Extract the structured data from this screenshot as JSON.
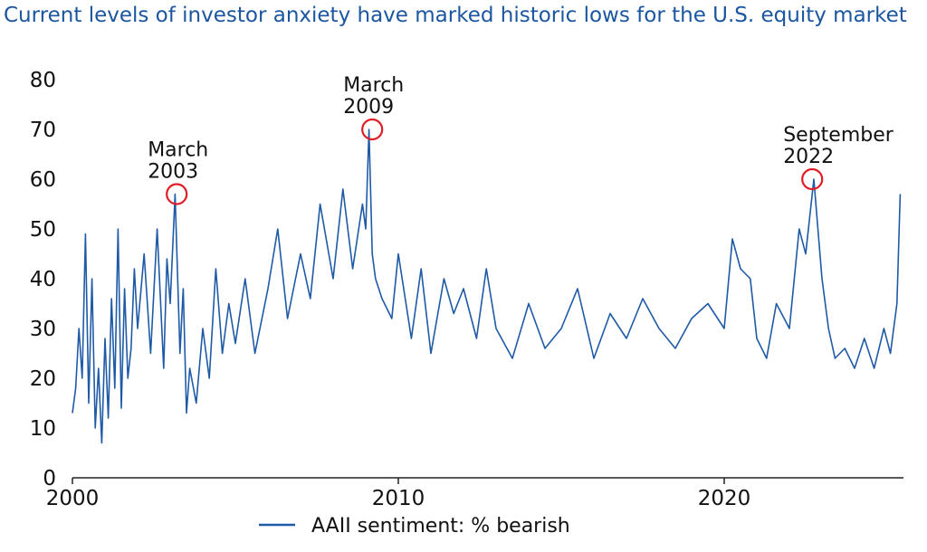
{
  "chart_data": {
    "type": "line",
    "title": "Current levels of investor anxiety have marked historic lows for the U.S. equity market",
    "xlabel": "",
    "ylabel": "",
    "xlim": [
      2000,
      2025.5
    ],
    "ylim": [
      0,
      80
    ],
    "x_ticks": [
      2000,
      2010,
      2020
    ],
    "y_ticks": [
      0,
      10,
      20,
      30,
      40,
      50,
      60,
      70,
      80
    ],
    "grid": false,
    "legend_position": "bottom-center",
    "colors": {
      "title": "#1b56a0",
      "series": "#1f5aa6",
      "annotation_circle": "#e01c24"
    },
    "series": [
      {
        "name": "AAII sentiment: % bearish",
        "x": [
          2000.0,
          2000.1,
          2000.2,
          2000.3,
          2000.4,
          2000.5,
          2000.6,
          2000.7,
          2000.8,
          2000.9,
          2001.0,
          2001.1,
          2001.2,
          2001.3,
          2001.4,
          2001.5,
          2001.6,
          2001.7,
          2001.8,
          2001.9,
          2002.0,
          2002.2,
          2002.4,
          2002.6,
          2002.8,
          2002.9,
          2003.0,
          2003.15,
          2003.3,
          2003.4,
          2003.5,
          2003.6,
          2003.8,
          2004.0,
          2004.2,
          2004.4,
          2004.6,
          2004.8,
          2005.0,
          2005.3,
          2005.6,
          2006.0,
          2006.3,
          2006.6,
          2007.0,
          2007.3,
          2007.6,
          2008.0,
          2008.3,
          2008.6,
          2008.9,
          2009.0,
          2009.1,
          2009.2,
          2009.3,
          2009.5,
          2009.8,
          2010.0,
          2010.4,
          2010.7,
          2011.0,
          2011.4,
          2011.7,
          2012.0,
          2012.4,
          2012.7,
          2013.0,
          2013.5,
          2014.0,
          2014.5,
          2015.0,
          2015.5,
          2016.0,
          2016.5,
          2017.0,
          2017.5,
          2018.0,
          2018.5,
          2019.0,
          2019.5,
          2020.0,
          2020.25,
          2020.5,
          2020.8,
          2021.0,
          2021.3,
          2021.6,
          2022.0,
          2022.3,
          2022.5,
          2022.75,
          2023.0,
          2023.2,
          2023.4,
          2023.7,
          2024.0,
          2024.3,
          2024.6,
          2024.9,
          2025.1,
          2025.3,
          2025.4
        ],
        "values": [
          13,
          18,
          30,
          20,
          49,
          15,
          40,
          10,
          22,
          7,
          28,
          12,
          36,
          18,
          50,
          14,
          38,
          20,
          26,
          42,
          30,
          45,
          25,
          50,
          22,
          44,
          35,
          57,
          25,
          38,
          13,
          22,
          15,
          30,
          20,
          42,
          25,
          35,
          27,
          40,
          25,
          38,
          50,
          32,
          45,
          36,
          55,
          40,
          58,
          42,
          55,
          50,
          70,
          45,
          40,
          36,
          32,
          45,
          28,
          42,
          25,
          40,
          33,
          38,
          28,
          42,
          30,
          24,
          35,
          26,
          30,
          38,
          24,
          33,
          28,
          36,
          30,
          26,
          32,
          35,
          30,
          48,
          42,
          40,
          28,
          24,
          35,
          30,
          50,
          45,
          60,
          40,
          30,
          24,
          26,
          22,
          28,
          22,
          30,
          25,
          35,
          57
        ]
      }
    ],
    "annotations": [
      {
        "label_line1": "March",
        "label_line2": "2003",
        "x": 2003.2,
        "y": 57
      },
      {
        "label_line1": "March",
        "label_line2": "2009",
        "x": 2009.2,
        "y": 70
      },
      {
        "label_line1": "September",
        "label_line2": "2022",
        "x": 2022.7,
        "y": 60
      }
    ]
  }
}
